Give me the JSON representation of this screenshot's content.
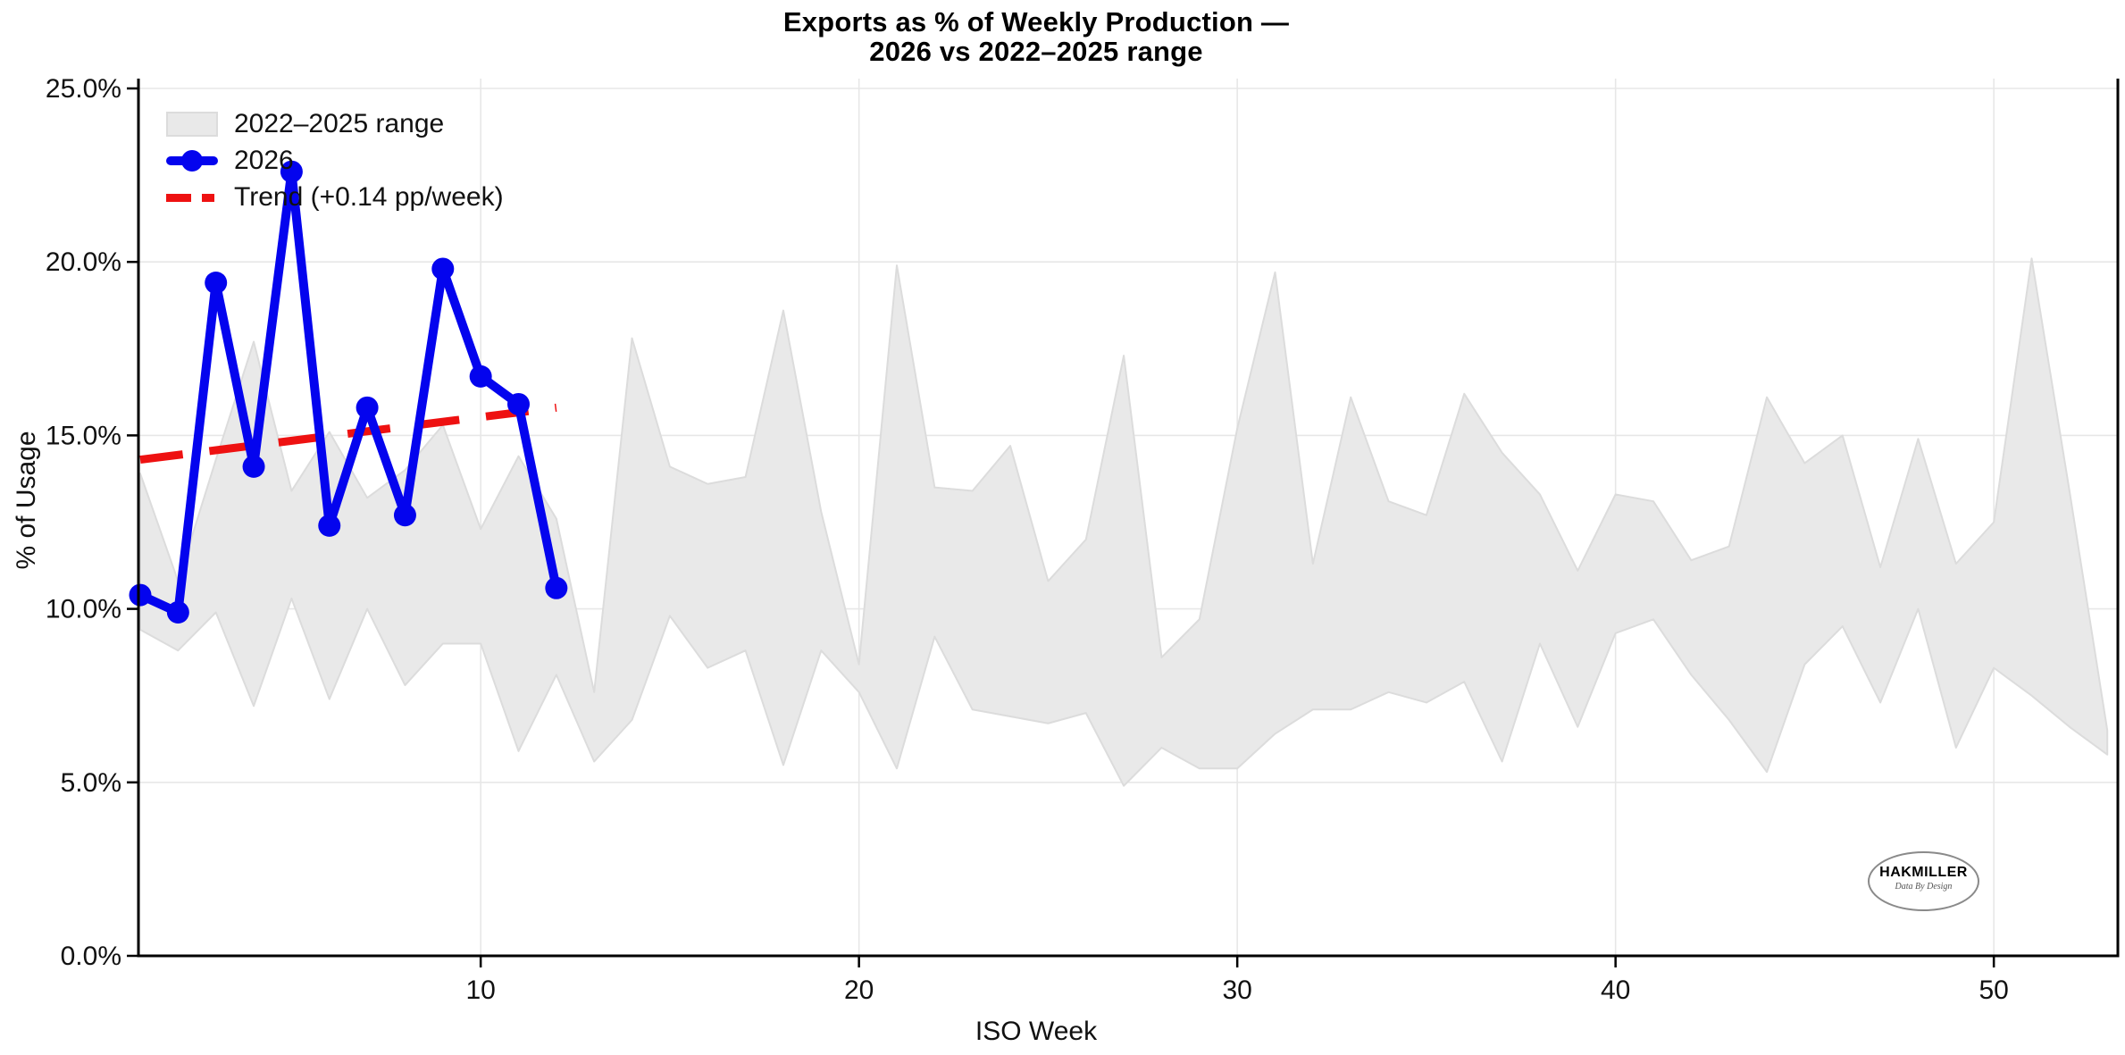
{
  "title": {
    "line1": "Exports as % of Weekly Production —",
    "line2": "2026 vs 2022–2025 range"
  },
  "axes": {
    "x_label": "ISO Week",
    "y_label": "% of Usage"
  },
  "legend": {
    "items": [
      {
        "label": "2022–2025 range",
        "swatch": "band-patch"
      },
      {
        "label": "2026",
        "swatch": "line-with-marker"
      },
      {
        "label": "Trend (+0.14 pp/week)",
        "swatch": "dashed-line"
      }
    ]
  },
  "logo": {
    "name": "HAKMILLER",
    "tagline": "Data By Design"
  },
  "colors": {
    "blue": "#0404ee",
    "red": "#ee1111",
    "band": "#e9e9e9",
    "band_edge": "#dcdcdc",
    "grid": "#e7e7e7",
    "axis": "#000000"
  },
  "chart_data": {
    "type": "line",
    "title": "Exports as % of Weekly Production — 2026 vs 2022–2025 range",
    "xlabel": "ISO Week",
    "ylabel": "% of Usage",
    "xlim": [
      1,
      53.3
    ],
    "ylim": [
      0,
      25.3
    ],
    "x_ticks": [
      10,
      20,
      30,
      40,
      50
    ],
    "y_ticks": {
      "values": [
        0,
        5,
        10,
        15,
        20,
        25
      ],
      "labels": [
        "0.0%",
        "5.0%",
        "10.0%",
        "15.0%",
        "20.0%",
        "25.0%"
      ]
    },
    "grid": true,
    "legend_position": "upper left",
    "series": [
      {
        "name": "2022–2025 range",
        "type": "band",
        "weeks": [
          1,
          2,
          3,
          4,
          5,
          6,
          7,
          8,
          9,
          10,
          11,
          12,
          13,
          14,
          15,
          16,
          17,
          18,
          19,
          20,
          21,
          22,
          23,
          24,
          25,
          26,
          27,
          28,
          29,
          30,
          31,
          32,
          33,
          34,
          35,
          36,
          37,
          38,
          39,
          40,
          41,
          42,
          43,
          44,
          45,
          46,
          47,
          48,
          49,
          50,
          51,
          52,
          53
        ],
        "upper": [
          13.9,
          10.8,
          14.3,
          17.7,
          13.4,
          15.1,
          13.2,
          14.0,
          15.3,
          12.3,
          14.4,
          12.6,
          7.6,
          17.8,
          14.1,
          13.6,
          13.8,
          18.6,
          12.8,
          8.4,
          19.9,
          13.5,
          13.4,
          14.7,
          10.8,
          12.0,
          17.3,
          8.6,
          9.7,
          15.2,
          19.7,
          11.3,
          16.1,
          13.1,
          12.7,
          16.2,
          14.5,
          13.3,
          11.1,
          13.3,
          13.1,
          11.4,
          11.8,
          16.1,
          14.2,
          15.0,
          11.2,
          14.9,
          11.3,
          12.5,
          20.1,
          13.4,
          6.5
        ],
        "lower": [
          9.4,
          8.8,
          9.9,
          7.2,
          10.3,
          7.4,
          10.0,
          7.8,
          9.0,
          9.0,
          5.9,
          8.1,
          5.6,
          6.8,
          9.8,
          8.3,
          8.8,
          5.5,
          8.8,
          7.6,
          5.4,
          9.2,
          7.1,
          6.9,
          6.7,
          7.0,
          4.9,
          6.0,
          5.4,
          5.4,
          6.4,
          7.1,
          7.1,
          7.6,
          7.3,
          7.9,
          5.6,
          9.0,
          6.6,
          9.3,
          9.7,
          8.1,
          6.8,
          5.3,
          8.4,
          9.5,
          7.3,
          10.0,
          6.0,
          8.3,
          7.5,
          6.6,
          5.8
        ]
      },
      {
        "name": "2026",
        "type": "line",
        "weeks": [
          1,
          2,
          3,
          4,
          5,
          6,
          7,
          8,
          9,
          10,
          11,
          12
        ],
        "values": [
          10.4,
          9.9,
          19.4,
          14.1,
          22.6,
          12.4,
          15.8,
          12.7,
          19.8,
          16.7,
          15.9,
          10.6
        ]
      },
      {
        "name": "Trend (+0.14 pp/week)",
        "type": "trend_dashed",
        "x_start": 1,
        "x_end": 12,
        "y_start": 14.3,
        "y_end": 15.8,
        "slope_pp_per_week": 0.14
      }
    ]
  }
}
